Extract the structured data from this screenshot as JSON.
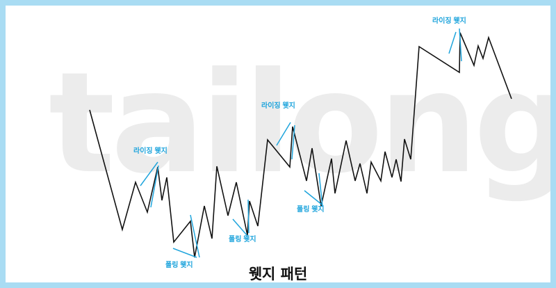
{
  "watermark": "tailong",
  "caption": "웻지 패턴",
  "labels": {
    "rising_1": "라이징 웻지",
    "rising_2": "라이징 웻지",
    "rising_3": "라이징 웻지",
    "falling_1": "폴링 웻지",
    "falling_2": "폴링 웻지",
    "falling_3": "폴링 웻지"
  },
  "colors": {
    "frame_border": "#a9dcf3",
    "price_line": "#111111",
    "wedge_line": "#1ea4dc",
    "watermark": "#ececec"
  }
}
